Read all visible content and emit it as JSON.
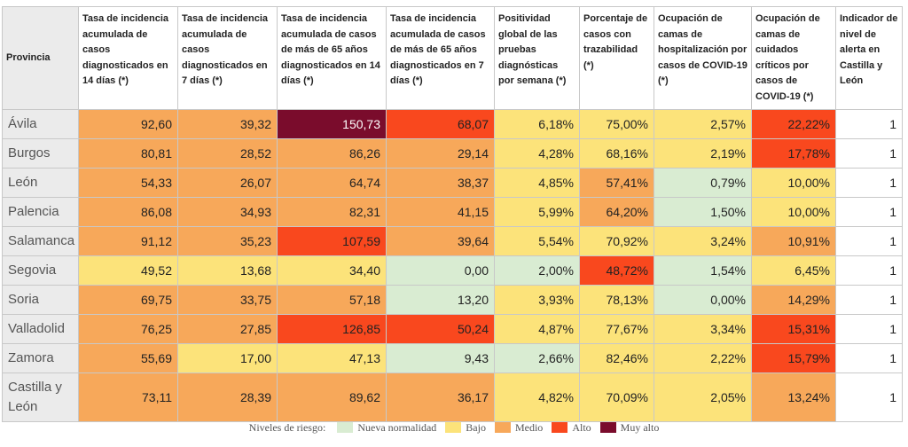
{
  "table": {
    "header": [
      "Provincia",
      "Tasa de incidencia acumulada de casos diagnosticados en 14 días (*)",
      "Tasa de incidencia acumulada de casos diagnosticados en 7 días (*)",
      "Tasa de incidencia acumulada de casos de más de 65 años diagnosticados en 14 días (*)",
      "Tasa de incidencia acumulada de casos de más de 65 años diagnosticados en 7 días (*)",
      "Positividad global de las pruebas diagnósticas por semana (*)",
      "Porcentaje de casos con trazabilidad (*)",
      "Ocupación de camas de hospitalización por casos de COVID-19 (*)",
      "Ocupación de camas de cuidados críticos por casos de COVID-19 (*)",
      "Indicador de nivel de alerta en Castilla y León"
    ],
    "rows": [
      [
        "Ávila",
        "92,60",
        "39,32",
        "150,73",
        "68,07",
        "6,18%",
        "75,00%",
        "2,57%",
        "22,22%",
        "1"
      ],
      [
        "Burgos",
        "80,81",
        "28,52",
        "86,26",
        "29,14",
        "4,28%",
        "68,16%",
        "2,19%",
        "17,78%",
        "1"
      ],
      [
        "León",
        "54,33",
        "26,07",
        "64,74",
        "38,37",
        "4,85%",
        "57,41%",
        "0,79%",
        "10,00%",
        "1"
      ],
      [
        "Palencia",
        "86,08",
        "34,93",
        "82,31",
        "41,15",
        "5,99%",
        "64,20%",
        "1,50%",
        "10,00%",
        "1"
      ],
      [
        "Salamanca",
        "91,12",
        "35,23",
        "107,59",
        "39,64",
        "5,54%",
        "70,92%",
        "3,24%",
        "10,91%",
        "1"
      ],
      [
        "Segovia",
        "49,52",
        "13,68",
        "34,40",
        "0,00",
        "2,00%",
        "48,72%",
        "1,54%",
        "6,45%",
        "1"
      ],
      [
        "Soria",
        "69,75",
        "33,75",
        "57,18",
        "13,20",
        "3,93%",
        "78,13%",
        "0,00%",
        "14,29%",
        "1"
      ],
      [
        "Valladolid",
        "76,25",
        "27,85",
        "126,85",
        "50,24",
        "4,87%",
        "77,67%",
        "3,34%",
        "15,31%",
        "1"
      ],
      [
        "Zamora",
        "55,69",
        "17,00",
        "47,13",
        "9,43",
        "2,66%",
        "82,46%",
        "2,22%",
        "15,79%",
        "1"
      ],
      [
        "Castilla y León",
        "73,11",
        "28,39",
        "89,62",
        "36,17",
        "4,82%",
        "70,09%",
        "2,05%",
        "13,24%",
        "1"
      ]
    ],
    "levels": [
      [
        null,
        2,
        2,
        4,
        3,
        1,
        1,
        1,
        3,
        null
      ],
      [
        null,
        2,
        2,
        2,
        2,
        1,
        1,
        1,
        3,
        null
      ],
      [
        null,
        2,
        2,
        2,
        2,
        1,
        2,
        0,
        1,
        null
      ],
      [
        null,
        2,
        2,
        2,
        2,
        1,
        2,
        0,
        1,
        null
      ],
      [
        null,
        2,
        2,
        3,
        2,
        1,
        1,
        1,
        2,
        null
      ],
      [
        null,
        1,
        1,
        1,
        0,
        0,
        3,
        0,
        1,
        null
      ],
      [
        null,
        2,
        2,
        2,
        0,
        1,
        1,
        0,
        2,
        null
      ],
      [
        null,
        2,
        2,
        3,
        3,
        1,
        1,
        1,
        3,
        null
      ],
      [
        null,
        2,
        1,
        1,
        0,
        0,
        1,
        1,
        3,
        null
      ],
      [
        null,
        2,
        2,
        2,
        2,
        1,
        1,
        1,
        2,
        null
      ]
    ]
  },
  "legend": {
    "title": "Niveles de riesgo:",
    "levels": [
      {
        "name": "Nueva normalidad",
        "color": "#d9ecd2"
      },
      {
        "name": "Bajo",
        "color": "#fce37a"
      },
      {
        "name": "Medio",
        "color": "#f7a85a"
      },
      {
        "name": "Alto",
        "color": "#f9481e"
      },
      {
        "name": "Muy alto",
        "color": "#7a0c2c"
      }
    ]
  }
}
